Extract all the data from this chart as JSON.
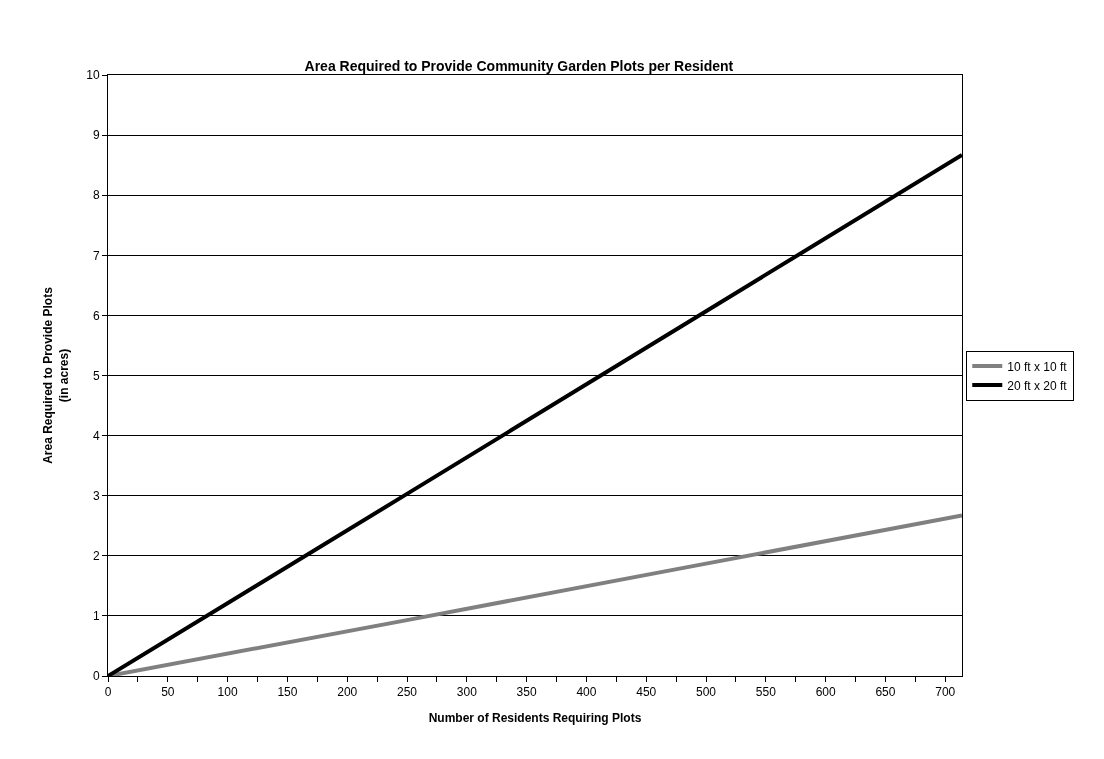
{
  "chart_data": {
    "type": "line",
    "title": "Area Required to Provide Community Garden Plots per Resident",
    "xlabel": "Number of Residents Requiring Plots",
    "ylabel": "Area Required to Provide Plots\n(in acres)",
    "x": [
      0,
      250,
      500,
      714
    ],
    "series": [
      {
        "name": "10 ft x 10 ft",
        "color": "#808080",
        "values": [
          0,
          0.93,
          1.87,
          2.67
        ]
      },
      {
        "name": "20 ft x 20 ft",
        "color": "#000000",
        "values": [
          0,
          3.03,
          6.07,
          8.67
        ]
      }
    ],
    "xlim": [
      0,
      714
    ],
    "xticks": [
      0,
      {
        "value": 25,
        "label": null
      },
      50,
      {
        "value": 75,
        "label": null
      },
      100,
      {
        "value": 125,
        "label": null
      },
      150,
      {
        "value": 175,
        "label": null
      },
      200,
      {
        "value": 225,
        "label": null
      },
      250,
      {
        "value": 275,
        "label": null
      },
      300,
      {
        "value": 325,
        "label": null
      },
      350,
      {
        "value": 375,
        "label": null
      },
      400,
      {
        "value": 425,
        "label": null
      },
      450,
      {
        "value": 475,
        "label": null
      },
      500,
      {
        "value": 525,
        "label": null
      },
      550,
      {
        "value": 575,
        "label": null
      },
      600,
      {
        "value": 625,
        "label": null
      },
      650,
      {
        "value": 675,
        "label": null
      },
      700
    ],
    "ylim": [
      0,
      10
    ],
    "yticks": [
      0,
      1,
      2,
      3,
      4,
      5,
      6,
      7,
      8,
      9,
      10
    ],
    "grid": "y",
    "legend": "right",
    "marker": "none",
    "line_style": "solid"
  }
}
